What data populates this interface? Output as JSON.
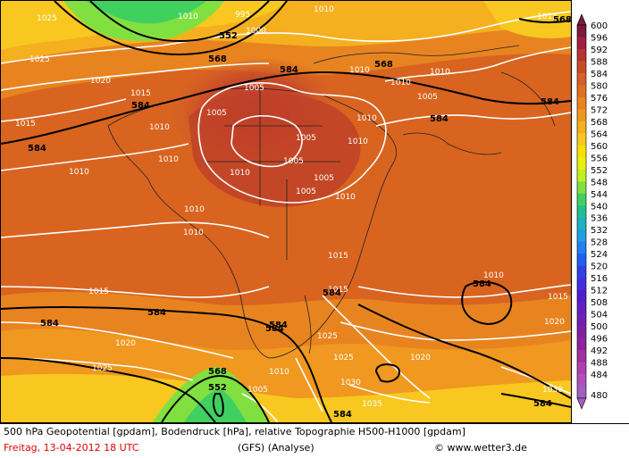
{
  "caption": {
    "line1": "500 hPa Geopotential [gpdam], Bodendruck [hPa], relative Topographie H500-H1000 [gpdam]",
    "date": "Freitag, 13-04-2012  18 UTC",
    "model": "(GFS)  (Analyse)",
    "copyright": "© www.wetter3.de"
  },
  "legend": {
    "colors": [
      "#7a1a3e",
      "#a02040",
      "#b83430",
      "#c84a28",
      "#d4602a",
      "#e07020",
      "#e88420",
      "#f09820",
      "#f5b020",
      "#f8c820",
      "#fae000",
      "#e8f010",
      "#c0f020",
      "#80e040",
      "#40d060",
      "#20c090",
      "#20b0c0",
      "#20a0e0",
      "#2080f0",
      "#2060f0",
      "#3040e8",
      "#4030e0",
      "#5020d0",
      "#6020c0",
      "#7020b0",
      "#8020a0",
      "#9020a0",
      "#a030a0",
      "#b040b0",
      "#b050c0",
      "#a060c0"
    ],
    "labels": [
      "600",
      "596",
      "592",
      "588",
      "584",
      "580",
      "576",
      "572",
      "568",
      "564",
      "560",
      "556",
      "552",
      "548",
      "544",
      "540",
      "536",
      "532",
      "528",
      "524",
      "520",
      "516",
      "512",
      "508",
      "504",
      "500",
      "496",
      "492",
      "488",
      "484",
      "480"
    ]
  },
  "map_labels": {
    "isobars": [
      "1010",
      "995",
      "1000",
      "1010",
      "1025",
      "1020",
      "1015",
      "1010",
      "1005",
      "1005",
      "1005",
      "1005",
      "1010",
      "1010",
      "1010",
      "1010",
      "1005",
      "1005",
      "1010",
      "1005",
      "1010",
      "1015",
      "1010",
      "1010",
      "1010",
      "1010",
      "1010",
      "1015",
      "1015",
      "1015",
      "1020",
      "1025",
      "1025",
      "1025",
      "1010",
      "1030",
      "1005",
      "1035",
      "1030",
      "1020",
      "1015",
      "1020",
      "1025",
      "1015",
      "1010"
    ],
    "geopotential": [
      "552",
      "568",
      "584",
      "568",
      "584",
      "584",
      "584",
      "584",
      "584",
      "584",
      "584",
      "584",
      "584",
      "568",
      "552",
      "584",
      "584",
      "584",
      "568"
    ]
  }
}
